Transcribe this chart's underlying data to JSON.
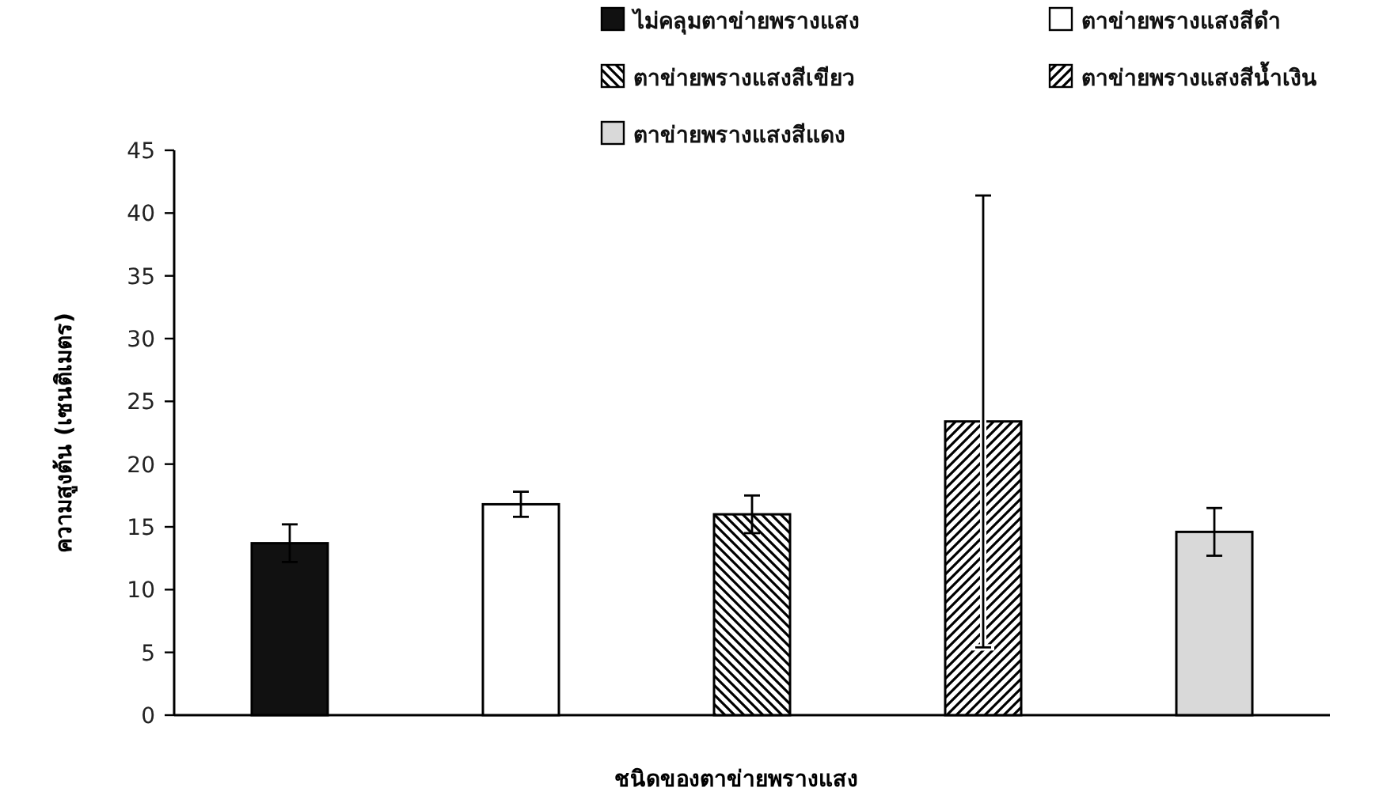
{
  "chart_data": {
    "type": "bar",
    "xlabel": "ชนิดของตาข่ายพรางแสง",
    "ylabel": "ความสูงต้น (เซนติเมตร)",
    "categories": [
      null,
      null,
      null,
      null,
      null
    ],
    "series": [
      {
        "name": "ไม่คลุมตาข่ายพรางแสง",
        "color": "#111111",
        "values": [
          13.7,
          null,
          null,
          null,
          null
        ],
        "errors": [
          1.5,
          null,
          null,
          null,
          null
        ]
      },
      {
        "name": "ตาข่ายพรางแสงสีดำ",
        "color": "#ffffff",
        "values": [
          null,
          16.8,
          null,
          null,
          null
        ],
        "errors": [
          null,
          1.0,
          null,
          null,
          null
        ]
      },
      {
        "name": "ตาข่ายพรางแสงสีเขียว",
        "color": "#000000",
        "values": [
          null,
          null,
          16.0,
          null,
          null
        ],
        "errors": [
          null,
          null,
          1.5,
          null,
          null
        ]
      },
      {
        "name": "ตาข่ายพรางแสงสีน้ำเงิน",
        "color": "#000000",
        "values": [
          null,
          null,
          null,
          23.4,
          null
        ],
        "errors": [
          null,
          null,
          null,
          18.0,
          null
        ]
      },
      {
        "name": "ตาข่ายพรางแสงสีแดง",
        "color": "#d9d9d9",
        "values": [
          null,
          null,
          null,
          null,
          14.6
        ],
        "errors": [
          null,
          null,
          null,
          null,
          1.9
        ]
      }
    ],
    "ylim": [
      0,
      45
    ],
    "yticks": [
      0,
      5,
      10,
      15,
      20,
      25,
      30,
      35,
      40,
      45
    ],
    "legend": "top"
  }
}
